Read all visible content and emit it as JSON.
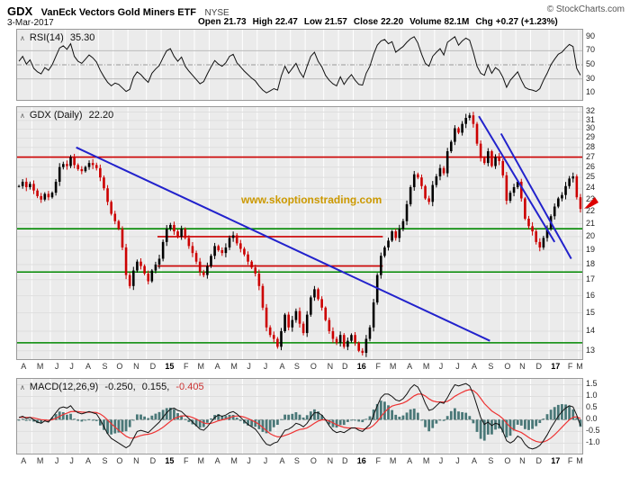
{
  "header": {
    "symbol": "GDX",
    "name": "VanEck Vectors Gold Miners ETF",
    "exchange": "NYSE",
    "date": "3-Mar-2017",
    "copyright": "© StockCharts.com",
    "quote": [
      {
        "label": "Open",
        "value": "21.73"
      },
      {
        "label": "High",
        "value": "22.47"
      },
      {
        "label": "Low",
        "value": "21.57"
      },
      {
        "label": "Close",
        "value": "22.20"
      },
      {
        "label": "Volume",
        "value": "82.1M"
      },
      {
        "label": "Chg",
        "value": "+0.27 (+1.23%)"
      }
    ]
  },
  "watermark": "www.skoptionstrading.com",
  "rsi_panel": {
    "label": "RSI(14)",
    "value": "35.30"
  },
  "price_panel": {
    "label": "GDX (Daily)",
    "value": "22.20"
  },
  "macd_panel": {
    "label": "MACD(12,26,9)",
    "macd_value": "-0.250,",
    "signal_value": "0.155,",
    "hist_value": "-0.405",
    "macd_value_color": "#111111",
    "signal_value_color": "#111111",
    "hist_value_color": "#cc3333"
  },
  "x_axis": {
    "labels": [
      "A",
      "M",
      "J",
      "J",
      "A",
      "S",
      "O",
      "N",
      "D",
      "15",
      "F",
      "M",
      "A",
      "M",
      "J",
      "J",
      "A",
      "S",
      "O",
      "N",
      "D",
      "16",
      "F",
      "M",
      "A",
      "M",
      "J",
      "J",
      "A",
      "S",
      "O",
      "N",
      "D",
      "17",
      "F",
      "M"
    ],
    "weeks_per_month": [
      4,
      5,
      4,
      4,
      5,
      4,
      4,
      5,
      4,
      5,
      4,
      4,
      5,
      4,
      4,
      5,
      4,
      4,
      5,
      4,
      4,
      5,
      4,
      4,
      5,
      4,
      4,
      5,
      4,
      5,
      4,
      4,
      5,
      4,
      4,
      1
    ],
    "year_labels": [
      "15",
      "16",
      "17"
    ]
  },
  "chart_data": [
    {
      "type": "line",
      "name": "RSI(14)",
      "panel": "rsi",
      "ylim": [
        0,
        100
      ],
      "yticks": [
        90,
        70,
        50,
        30,
        10
      ],
      "ref_lines": [
        {
          "y": 70,
          "style": "solid"
        },
        {
          "y": 50,
          "style": "dashdot"
        },
        {
          "y": 30,
          "style": "solid"
        }
      ],
      "line_color": "#111111",
      "values": [
        55,
        62,
        51,
        57,
        45,
        40,
        37,
        46,
        42,
        50,
        62,
        74,
        77,
        72,
        80,
        62,
        55,
        52,
        58,
        64,
        60,
        54,
        42,
        33,
        25,
        20,
        24,
        22,
        17,
        12,
        15,
        32,
        40,
        36,
        30,
        25,
        38,
        44,
        49,
        60,
        70,
        73,
        62,
        55,
        61,
        48,
        41,
        35,
        29,
        23,
        26,
        37,
        47,
        56,
        51,
        48,
        53,
        62,
        65,
        53,
        47,
        41,
        36,
        31,
        27,
        20,
        14,
        10,
        13,
        16,
        14,
        34,
        48,
        38,
        45,
        52,
        40,
        32,
        48,
        62,
        68,
        55,
        47,
        35,
        28,
        23,
        20,
        33,
        22,
        30,
        36,
        28,
        22,
        21,
        38,
        48,
        65,
        78,
        84,
        86,
        80,
        83,
        68,
        72,
        76,
        82,
        87,
        90,
        81,
        65,
        52,
        48,
        62,
        68,
        73,
        64,
        82,
        86,
        90,
        78,
        84,
        88,
        85,
        68,
        48,
        38,
        35,
        50,
        38,
        46,
        42,
        32,
        18,
        28,
        34,
        40,
        28,
        18,
        15,
        14,
        12,
        16,
        28,
        38,
        50,
        58,
        65,
        68,
        74,
        79,
        76,
        45,
        35.3
      ]
    },
    {
      "type": "candlestick",
      "name": "GDX daily price, weekly-sampled closes (Apr 2014 - Mar 2017)",
      "panel": "price",
      "scale": "log",
      "ylim": [
        12.6,
        32.6
      ],
      "yticks": [
        32,
        31,
        30,
        29,
        28,
        27,
        26,
        25,
        24,
        23,
        22,
        21,
        20,
        19,
        18,
        17,
        16,
        15,
        14,
        13
      ],
      "up_color": "#000000",
      "down_color": "#cc0000",
      "closes": [
        24.2,
        24.6,
        24.1,
        24.4,
        23.8,
        23.3,
        23.0,
        23.5,
        23.2,
        23.6,
        24.6,
        26.0,
        26.3,
        26.1,
        27.0,
        26.2,
        25.8,
        25.6,
        26.0,
        26.4,
        26.2,
        25.9,
        25.0,
        24.0,
        22.8,
        21.8,
        21.2,
        20.6,
        19.2,
        17.3,
        16.6,
        17.6,
        18.2,
        17.9,
        17.4,
        16.9,
        17.6,
        18.0,
        18.4,
        19.6,
        20.6,
        20.9,
        20.4,
        20.0,
        20.6,
        19.9,
        19.3,
        18.8,
        18.2,
        17.5,
        17.3,
        17.9,
        18.6,
        19.3,
        19.0,
        18.8,
        19.2,
        19.9,
        20.1,
        19.5,
        19.1,
        18.7,
        18.2,
        17.8,
        17.4,
        16.6,
        15.3,
        14.2,
        13.8,
        13.6,
        13.2,
        14.0,
        14.9,
        14.2,
        14.6,
        15.1,
        14.4,
        13.9,
        14.9,
        15.9,
        16.4,
        15.8,
        15.3,
        14.6,
        14.0,
        13.6,
        13.4,
        13.8,
        13.2,
        13.5,
        13.8,
        13.4,
        13.0,
        12.9,
        13.6,
        14.2,
        15.6,
        17.3,
        18.6,
        19.2,
        19.7,
        20.4,
        19.9,
        20.6,
        21.2,
        22.6,
        24.1,
        25.3,
        25.0,
        24.2,
        23.1,
        22.8,
        24.3,
        25.1,
        25.9,
        25.4,
        27.6,
        28.6,
        30.1,
        29.6,
        30.6,
        31.3,
        31.6,
        30.6,
        28.4,
        26.9,
        26.4,
        27.6,
        26.1,
        27.0,
        26.6,
        25.2,
        22.9,
        23.6,
        24.1,
        24.6,
        23.1,
        21.4,
        20.8,
        20.4,
        19.6,
        19.2,
        19.9,
        20.6,
        21.6,
        22.4,
        23.1,
        23.4,
        24.2,
        24.9,
        25.1,
        23.2,
        22.2
      ],
      "support_resistance": [
        {
          "price": 27.0,
          "color": "#cc0000",
          "from_week": 0,
          "to_week": 153
        },
        {
          "price": 20.6,
          "color": "#008800",
          "from_week": 0,
          "to_week": 153
        },
        {
          "price": 17.5,
          "color": "#008800",
          "from_week": 0,
          "to_week": 153
        },
        {
          "price": 13.4,
          "color": "#008800",
          "from_week": 0,
          "to_week": 153
        },
        {
          "price": 20.0,
          "color": "#cc0000",
          "from_week": 38,
          "to_week": 99
        },
        {
          "price": 17.9,
          "color": "#cc0000",
          "from_week": 38,
          "to_week": 99
        }
      ],
      "trendlines": [
        {
          "from": [
            16,
            28.0
          ],
          "to": [
            128,
            13.5
          ],
          "color": "#2222cc"
        },
        {
          "from": [
            125,
            31.5
          ],
          "to": [
            145.5,
            19.6
          ],
          "color": "#2222cc"
        },
        {
          "from": [
            131,
            29.5
          ],
          "to": [
            150,
            18.4
          ],
          "color": "#2222cc"
        }
      ],
      "marker": {
        "week": 152,
        "price": 22.5,
        "shape": "red-arrow",
        "color": "#dd0000"
      }
    },
    {
      "type": "macd",
      "name": "MACD(12,26,9)",
      "panel": "macd",
      "ylim": [
        -1.45,
        1.75
      ],
      "yticks": [
        1.5,
        1.0,
        0.5,
        0.0,
        -0.5,
        -1.0
      ],
      "line_color": "#111111",
      "signal_color": "#ee3333",
      "hist_color": "#4a7878",
      "signal_rule": "ema9_of_macd",
      "histogram_rule": "macd_minus_signal",
      "macd": [
        0.1,
        0.15,
        0.05,
        0.1,
        0.0,
        -0.1,
        -0.15,
        -0.05,
        -0.1,
        0.1,
        0.3,
        0.5,
        0.55,
        0.5,
        0.6,
        0.4,
        0.3,
        0.25,
        0.3,
        0.35,
        0.3,
        0.25,
        0.0,
        -0.3,
        -0.6,
        -0.8,
        -0.9,
        -1.0,
        -1.1,
        -1.2,
        -1.1,
        -0.8,
        -0.5,
        -0.45,
        -0.5,
        -0.55,
        -0.4,
        -0.25,
        -0.1,
        0.1,
        0.3,
        0.45,
        0.5,
        0.4,
        0.35,
        0.2,
        0.05,
        -0.1,
        -0.25,
        -0.4,
        -0.45,
        -0.3,
        -0.1,
        0.1,
        0.2,
        0.15,
        0.2,
        0.3,
        0.35,
        0.25,
        0.1,
        -0.05,
        -0.2,
        -0.3,
        -0.4,
        -0.6,
        -0.85,
        -1.05,
        -1.1,
        -1.0,
        -0.95,
        -0.7,
        -0.45,
        -0.4,
        -0.3,
        -0.15,
        -0.2,
        -0.3,
        -0.15,
        0.1,
        0.3,
        0.3,
        0.2,
        0.0,
        -0.25,
        -0.45,
        -0.55,
        -0.5,
        -0.55,
        -0.45,
        -0.35,
        -0.35,
        -0.45,
        -0.5,
        -0.35,
        -0.2,
        0.2,
        0.6,
        0.95,
        1.1,
        1.1,
        1.0,
        0.85,
        0.8,
        0.9,
        1.1,
        1.35,
        1.5,
        1.4,
        1.1,
        0.7,
        0.4,
        0.45,
        0.6,
        0.75,
        0.7,
        0.95,
        1.25,
        1.5,
        1.45,
        1.5,
        1.55,
        1.45,
        1.1,
        0.6,
        0.1,
        -0.2,
        -0.1,
        -0.25,
        -0.15,
        -0.2,
        -0.5,
        -0.9,
        -1.0,
        -0.9,
        -0.7,
        -0.8,
        -1.05,
        -1.2,
        -1.25,
        -1.2,
        -1.1,
        -0.9,
        -0.65,
        -0.35,
        -0.1,
        0.15,
        0.35,
        0.5,
        0.6,
        0.55,
        0.2,
        -0.25
      ]
    }
  ]
}
